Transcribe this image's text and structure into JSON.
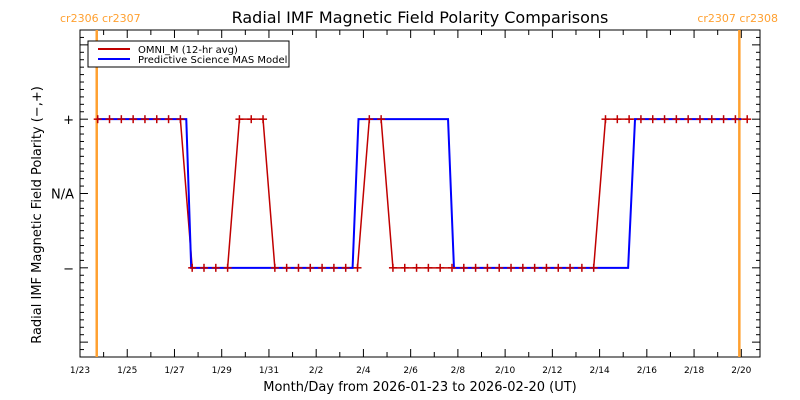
{
  "chart_data": {
    "type": "line",
    "title": "Radial IMF Magnetic Field Polarity Comparisons",
    "xlabel": "Month/Day from 2026-01-23 to 2026-02-20 (UT)",
    "ylabel": "Radial IMF Magnetic Field Polarity (−,+)",
    "xlim": [
      "2026-01-23T00:00",
      "2026-02-20T19:00"
    ],
    "ylim": [
      -2.2,
      2.2
    ],
    "x_ticks": [
      "1/23",
      "1/25",
      "1/27",
      "1/29",
      "1/31",
      "2/2",
      "2/4",
      "2/6",
      "2/8",
      "2/10",
      "2/12",
      "2/14",
      "2/16",
      "2/18",
      "2/20"
    ],
    "y_ticks": [
      {
        "value": 1,
        "label": "+"
      },
      {
        "value": 0,
        "label": "N/A"
      },
      {
        "value": -1,
        "label": "−"
      }
    ],
    "grid": false,
    "legend_position": "top-left",
    "series": [
      {
        "name": "OMNI_M (12-hr avg)",
        "color": "#c00000",
        "marker": "plus",
        "t_start": "2026-01-23T18:00",
        "cadence_hours": 12,
        "values": [
          1,
          1,
          1,
          1,
          1,
          1,
          1,
          1,
          -1,
          -1,
          -1,
          -1,
          1,
          1,
          1,
          -1,
          -1,
          -1,
          -1,
          -1,
          -1,
          -1,
          -1,
          1,
          1,
          -1,
          -1,
          -1,
          -1,
          -1,
          -1,
          -1,
          -1,
          -1,
          -1,
          -1,
          -1,
          -1,
          -1,
          -1,
          -1,
          -1,
          -1,
          1,
          1,
          1,
          1,
          1,
          1,
          1,
          1,
          1,
          1,
          1,
          1,
          1
        ]
      },
      {
        "name": "Predictive Science MAS Model",
        "color": "#0000ff",
        "marker": "none",
        "points": [
          [
            "2026-01-23T17:00",
            1
          ],
          [
            "2026-01-27T12:00",
            1
          ],
          [
            "2026-01-27T17:00",
            -1
          ],
          [
            "2026-02-03T13:00",
            -1
          ],
          [
            "2026-02-03T19:00",
            1
          ],
          [
            "2026-02-07T14:00",
            1
          ],
          [
            "2026-02-07T20:00",
            -1
          ],
          [
            "2026-02-15T05:00",
            -1
          ],
          [
            "2026-02-15T12:00",
            1
          ],
          [
            "2026-02-20T00:00",
            1
          ]
        ]
      }
    ],
    "carrington_markers": [
      {
        "time": "2026-01-23T17:00",
        "label": "cr2306 cr2307"
      },
      {
        "time": "2026-02-19T22:00",
        "label": "cr2307 cr2308"
      }
    ],
    "marker_color": "#ffa030"
  }
}
